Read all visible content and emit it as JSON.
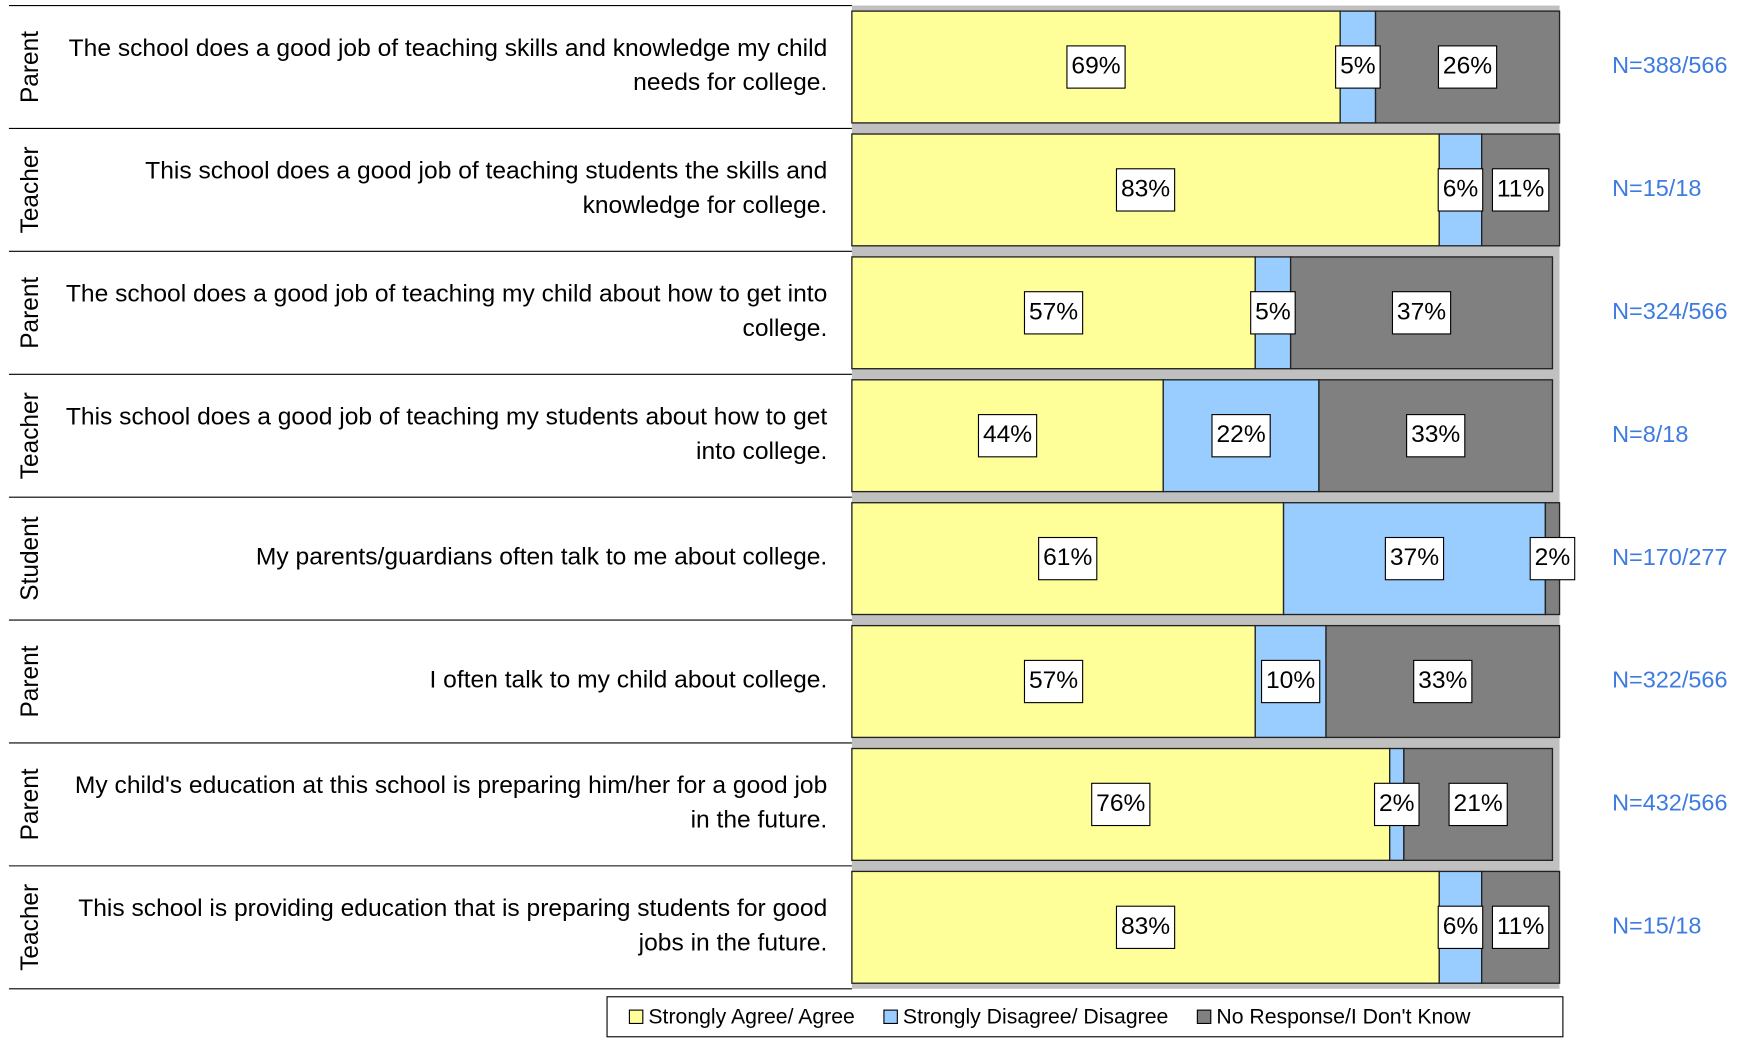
{
  "chart_data": {
    "type": "bar",
    "orientation": "horizontal",
    "stacked": true,
    "categories": [
      "The school does a good job of teaching skills and knowledge my child needs for college.",
      "This school does a good job of teaching students the skills and knowledge for college.",
      "The school does a good job of teaching my child about how to get into college.",
      "This school does a good job of teaching my students about how to get into college.",
      "My parents/guardians often talk to me about college.",
      "I often talk to my child about college.",
      "My child's education at this school is preparing him/her for a good job in the future.",
      "This school is providing education that is preparing students for good jobs in the future."
    ],
    "groups": [
      "Parent",
      "Teacher",
      "Parent",
      "Teacher",
      "Student",
      "Parent",
      "Parent",
      "Teacher"
    ],
    "annotations": [
      "N=388/566",
      "N=15/18",
      "N=324/566",
      "N=8/18",
      "N=170/277",
      "N=322/566",
      "N=432/566",
      "N=15/18"
    ],
    "xlim": [
      0,
      100
    ],
    "series": [
      {
        "name": "Strongly Agree/ Agree",
        "color": "#ffff99",
        "values": [
          69,
          83,
          57,
          44,
          61,
          57,
          76,
          83
        ],
        "value_labels": [
          "69%",
          "83%",
          "57%",
          "44%",
          "61%",
          "57%",
          "76%",
          "83%"
        ]
      },
      {
        "name": "Strongly Disagree/ Disagree",
        "color": "#99ccff",
        "values": [
          5,
          6,
          5,
          22,
          37,
          10,
          2,
          6
        ],
        "value_labels": [
          "5%",
          "6%",
          "5%",
          "22%",
          "37%",
          "10%",
          "2%",
          "6%"
        ]
      },
      {
        "name": "No Response/I Don't Know",
        "color": "#808080",
        "values": [
          26,
          11,
          37,
          33,
          2,
          33,
          21,
          11
        ],
        "value_labels": [
          "26%",
          "11%",
          "37%",
          "33%",
          "2%",
          "33%",
          "21%",
          "11%"
        ]
      }
    ],
    "legend": "bottom"
  }
}
